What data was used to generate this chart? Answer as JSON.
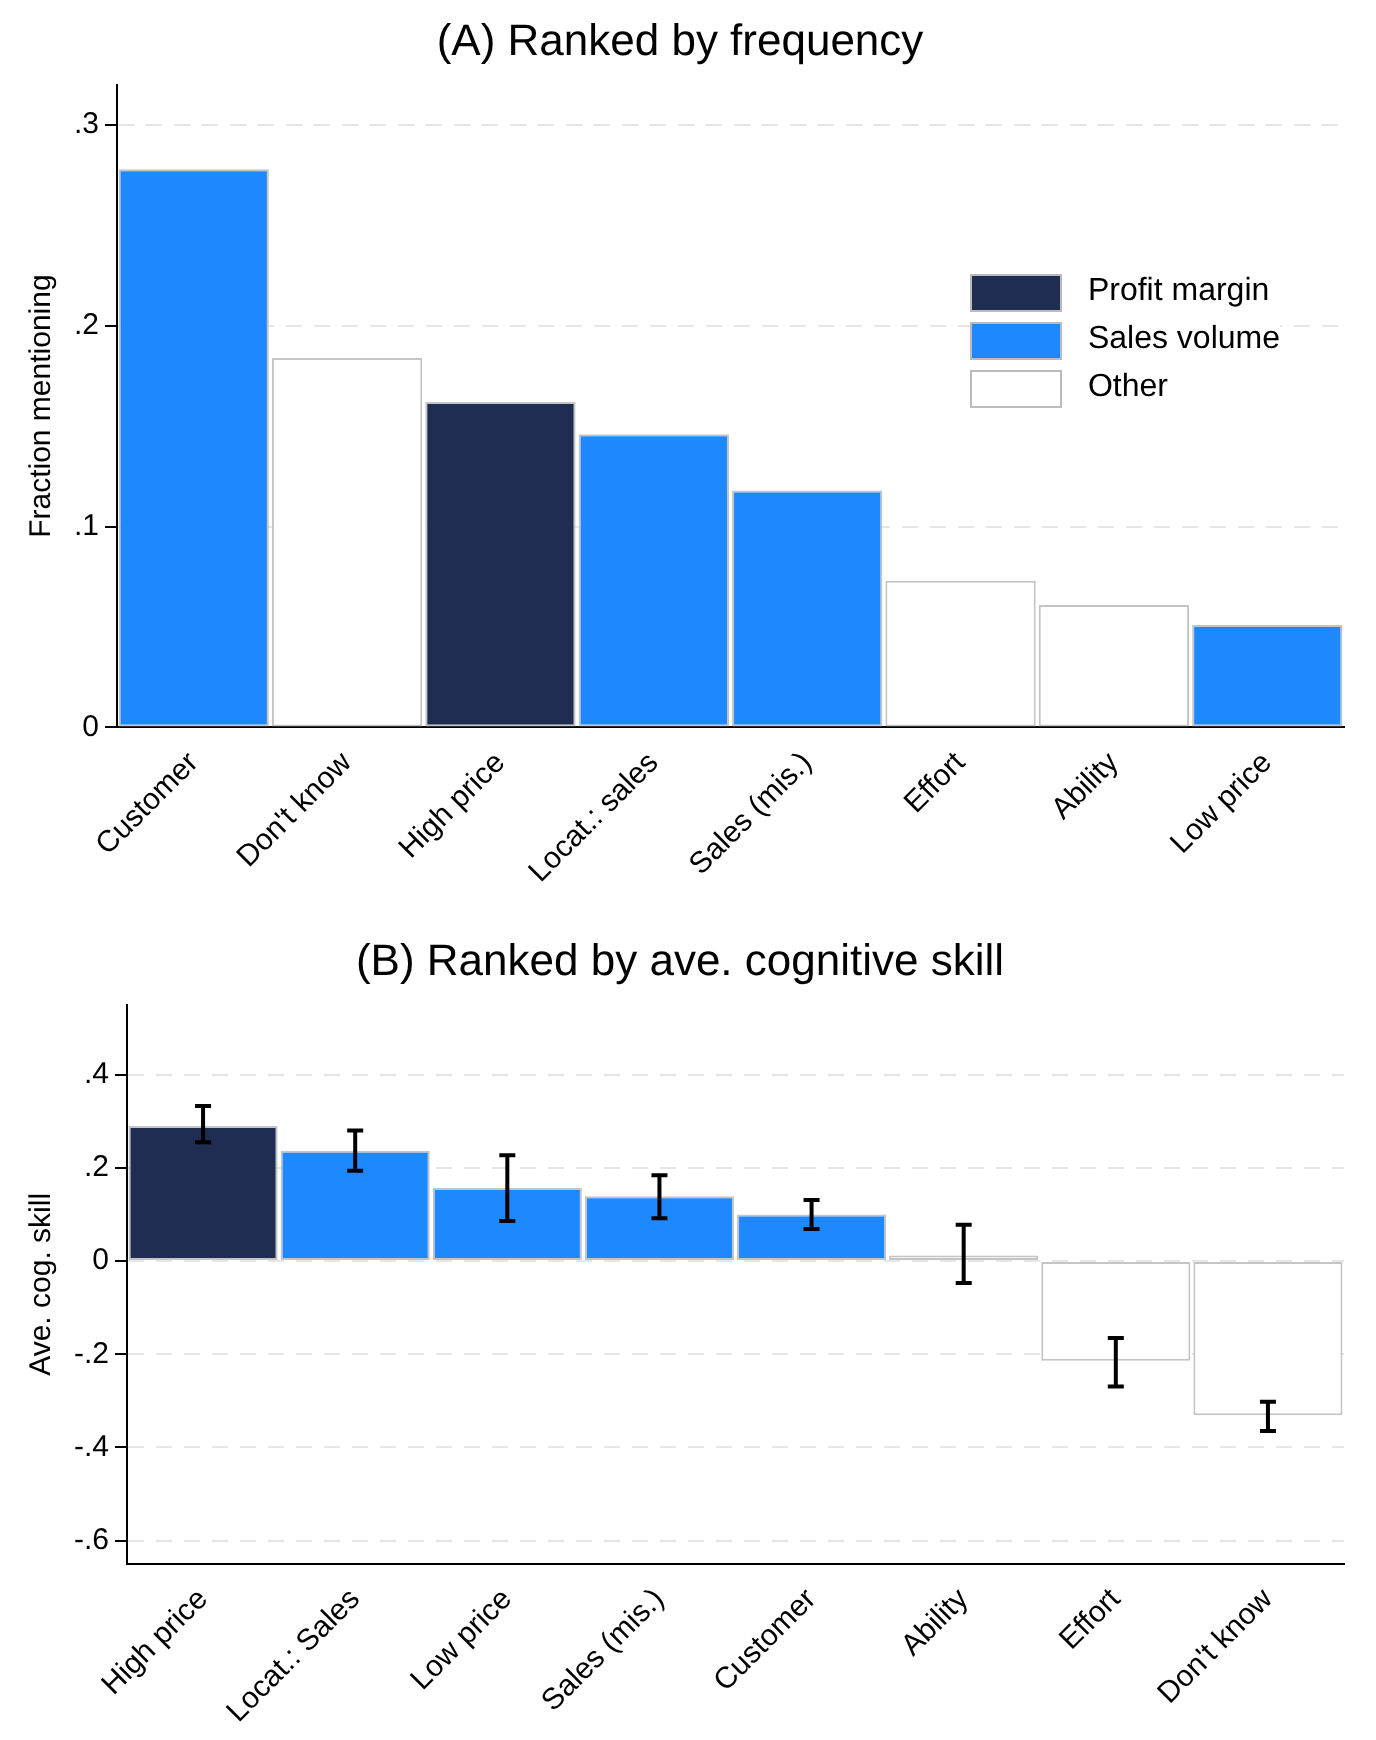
{
  "chart_data": [
    {
      "type": "bar",
      "title": "(A) Ranked by frequency",
      "ylabel": "Fraction mentioning",
      "categories": [
        "Customer",
        "Don't know",
        "High price",
        "Locat.: sales",
        "Sales (mis.)",
        "Effort",
        "Ability",
        "Low price"
      ],
      "series": [
        {
          "name": "Profit margin",
          "color": "#1f2d52",
          "values": [
            null,
            null,
            0.162,
            null,
            null,
            null,
            null,
            null
          ]
        },
        {
          "name": "Sales volume",
          "color": "#1e88ff",
          "values": [
            0.278,
            null,
            null,
            0.146,
            0.118,
            null,
            null,
            0.051
          ]
        },
        {
          "name": "Other",
          "color": "#ffffff",
          "values": [
            null,
            0.184,
            null,
            null,
            null,
            0.073,
            0.061,
            null
          ]
        }
      ],
      "ylim": [
        0,
        0.32
      ],
      "yticks": [
        0,
        {
          "value": 0.1,
          "label": ".1"
        },
        {
          "value": 0.2,
          "label": ".2"
        },
        {
          "value": 0.3,
          "label": ".3"
        }
      ],
      "grid": "y",
      "legend": "right"
    },
    {
      "type": "bar",
      "title": "(B) Ranked by ave. cognitive skill",
      "ylabel": "Ave. cog. skill",
      "categories": [
        "High price",
        "Locat.: Sales",
        "Low price",
        "Sales (mis.)",
        "Customer",
        "Ability",
        "Effort",
        "Don't know"
      ],
      "series": [
        {
          "color": "#1f2d52",
          "values": [
            0.29,
            null,
            null,
            null,
            null,
            null,
            null,
            null
          ],
          "errors": [
            [
              0.255,
              0.333
            ],
            null,
            null,
            null,
            null,
            null,
            null,
            null
          ]
        },
        {
          "color": "#1e88ff",
          "values": [
            null,
            0.237,
            0.157,
            0.139,
            0.1,
            null,
            null,
            null
          ],
          "errors": [
            null,
            [
              0.194,
              0.28
            ],
            [
              0.086,
              0.227
            ],
            [
              0.092,
              0.184
            ],
            [
              0.069,
              0.131
            ],
            null,
            null,
            null
          ]
        },
        {
          "color": "#ffffff",
          "values": [
            null,
            null,
            null,
            null,
            null,
            0.012,
            -0.214,
            -0.331
          ],
          "errors": [
            null,
            null,
            null,
            null,
            null,
            [
              -0.047,
              0.078
            ],
            [
              -0.269,
              -0.165
            ],
            [
              -0.365,
              -0.302
            ]
          ]
        }
      ],
      "ylim": [
        -0.65,
        0.55
      ],
      "yticks": [
        {
          "value": -0.6,
          "label": "-.6"
        },
        {
          "value": -0.4,
          "label": "-.4"
        },
        {
          "value": -0.2,
          "label": "-.2"
        },
        0,
        {
          "value": 0.2,
          "label": ".2"
        },
        {
          "value": 0.4,
          "label": ".4"
        }
      ],
      "grid": "y",
      "legend": false
    }
  ]
}
